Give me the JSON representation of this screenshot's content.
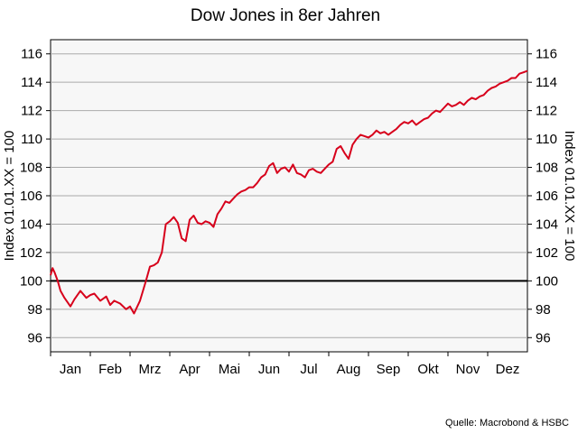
{
  "chart_data": {
    "type": "line",
    "title": "Dow Jones in 8er Jahren",
    "ylabel_left": "Index 01.01.XX = 100",
    "ylabel_right": "Index 01.01.XX = 100",
    "source": "Quelle: Macrobond & HSBC",
    "ylim": [
      95,
      117
    ],
    "yticks": [
      96,
      98,
      100,
      102,
      104,
      106,
      108,
      110,
      112,
      114,
      116
    ],
    "xlim": [
      0,
      12
    ],
    "categories": [
      "Jan",
      "Feb",
      "Mrz",
      "Apr",
      "Mai",
      "Jun",
      "Jul",
      "Aug",
      "Sep",
      "Okt",
      "Nov",
      "Dez"
    ],
    "grid": true,
    "reference_line": 100,
    "colors": {
      "series": "#d7001b",
      "reference": "#000000",
      "grid": "#aaaaaa",
      "plot_bg": "#f7f7f7"
    },
    "series": [
      {
        "x": [
          0.0,
          0.05,
          0.1,
          0.18,
          0.25,
          0.35,
          0.5,
          0.6,
          0.75,
          0.9,
          1.0,
          1.1,
          1.25,
          1.4,
          1.5,
          1.6,
          1.75,
          1.9,
          2.0,
          2.1,
          2.25,
          2.4,
          2.5,
          2.6,
          2.7,
          2.8,
          2.9,
          3.0,
          3.1,
          3.2,
          3.3,
          3.4,
          3.5,
          3.6,
          3.7,
          3.8,
          3.9,
          4.0,
          4.1,
          4.2,
          4.3,
          4.4,
          4.5,
          4.6,
          4.7,
          4.8,
          4.9,
          5.0,
          5.1,
          5.2,
          5.3,
          5.4,
          5.5,
          5.6,
          5.7,
          5.8,
          5.9,
          6.0,
          6.1,
          6.2,
          6.3,
          6.4,
          6.5,
          6.6,
          6.7,
          6.8,
          6.9,
          7.0,
          7.1,
          7.2,
          7.3,
          7.4,
          7.5,
          7.6,
          7.7,
          7.8,
          7.9,
          8.0,
          8.1,
          8.2,
          8.3,
          8.4,
          8.5,
          8.6,
          8.7,
          8.8,
          8.9,
          9.0,
          9.1,
          9.2,
          9.3,
          9.4,
          9.5,
          9.6,
          9.7,
          9.8,
          9.9,
          10.0,
          10.1,
          10.2,
          10.3,
          10.4,
          10.5,
          10.6,
          10.7,
          10.8,
          10.9,
          11.0,
          11.1,
          11.2,
          11.3,
          11.4,
          11.5,
          11.6,
          11.7,
          11.8,
          11.9,
          12.0
        ],
        "values": [
          100.4,
          100.9,
          100.6,
          100.0,
          99.3,
          98.8,
          98.2,
          98.7,
          99.3,
          98.8,
          99.0,
          99.1,
          98.6,
          98.9,
          98.3,
          98.6,
          98.4,
          98.0,
          98.2,
          97.7,
          98.6,
          100.0,
          101.0,
          101.1,
          101.3,
          102.0,
          104.0,
          104.2,
          104.5,
          104.1,
          103.0,
          102.8,
          104.3,
          104.6,
          104.1,
          104.0,
          104.2,
          104.1,
          103.8,
          104.7,
          105.1,
          105.6,
          105.5,
          105.8,
          106.1,
          106.3,
          106.4,
          106.6,
          106.6,
          106.9,
          107.3,
          107.5,
          108.1,
          108.3,
          107.6,
          107.9,
          108.0,
          107.7,
          108.2,
          107.6,
          107.5,
          107.3,
          107.8,
          107.9,
          107.7,
          107.6,
          107.9,
          108.2,
          108.4,
          109.3,
          109.5,
          109.0,
          108.6,
          109.6,
          110.0,
          110.3,
          110.2,
          110.1,
          110.3,
          110.6,
          110.4,
          110.5,
          110.3,
          110.5,
          110.7,
          111.0,
          111.2,
          111.1,
          111.3,
          111.0,
          111.2,
          111.4,
          111.5,
          111.8,
          112.0,
          111.9,
          112.2,
          112.5,
          112.3,
          112.4,
          112.6,
          112.4,
          112.7,
          112.9,
          112.8,
          113.0,
          113.1,
          113.4,
          113.6,
          113.7,
          113.9,
          114.0,
          114.1,
          114.3,
          114.3,
          114.6,
          114.7,
          114.8
        ]
      }
    ]
  }
}
